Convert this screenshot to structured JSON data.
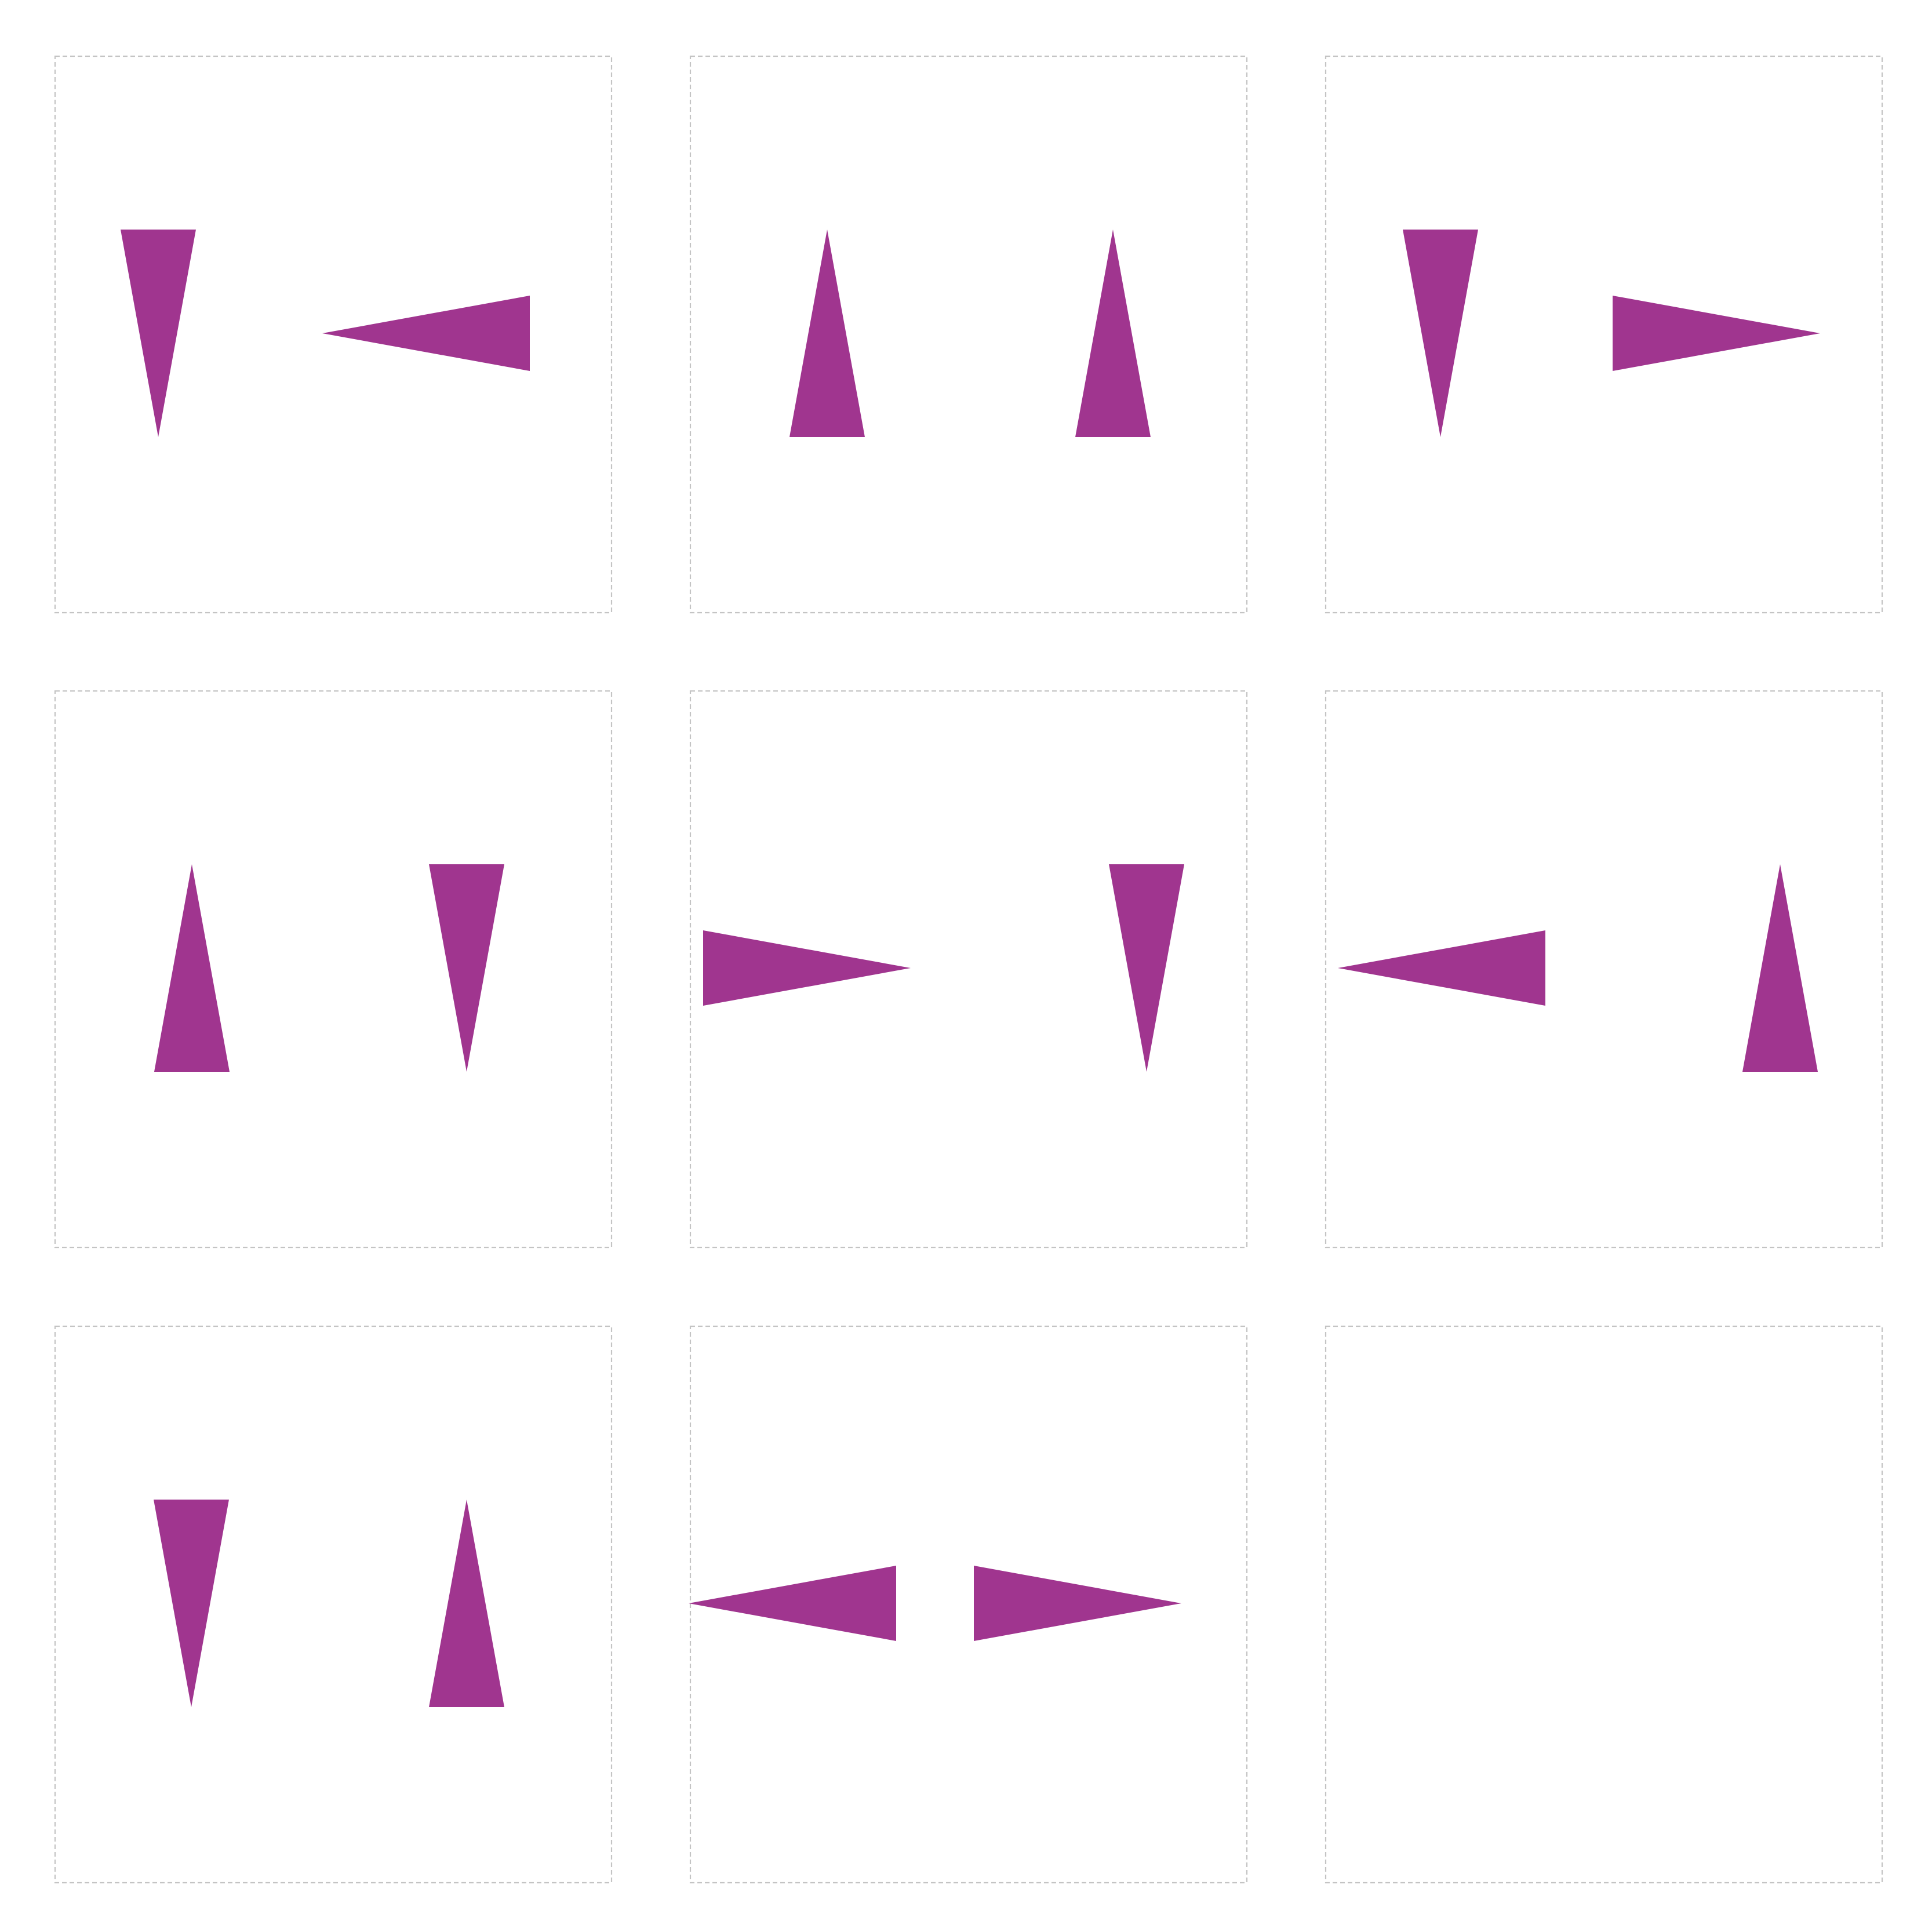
{
  "colors": {
    "background": "#ffffff",
    "panel_border": "#c4c4c4",
    "shape_fill": "#a0358f"
  },
  "grid": {
    "rows": 3,
    "columns": 3,
    "panels": [
      {
        "name": "panel-r1-c1",
        "shapes": [
          {
            "kind": "triangle",
            "direction": "down"
          },
          {
            "kind": "triangle",
            "direction": "left"
          }
        ]
      },
      {
        "name": "panel-r1-c2",
        "shapes": [
          {
            "kind": "triangle",
            "direction": "up"
          },
          {
            "kind": "triangle",
            "direction": "up"
          }
        ]
      },
      {
        "name": "panel-r1-c3",
        "shapes": [
          {
            "kind": "triangle",
            "direction": "down"
          },
          {
            "kind": "triangle",
            "direction": "right"
          }
        ]
      },
      {
        "name": "panel-r2-c1",
        "shapes": [
          {
            "kind": "triangle",
            "direction": "up"
          },
          {
            "kind": "triangle",
            "direction": "down"
          }
        ]
      },
      {
        "name": "panel-r2-c2",
        "shapes": [
          {
            "kind": "triangle",
            "direction": "right"
          },
          {
            "kind": "triangle",
            "direction": "down"
          }
        ]
      },
      {
        "name": "panel-r2-c3",
        "shapes": [
          {
            "kind": "triangle",
            "direction": "left"
          },
          {
            "kind": "triangle",
            "direction": "up"
          }
        ]
      },
      {
        "name": "panel-r3-c1",
        "shapes": [
          {
            "kind": "triangle",
            "direction": "down"
          },
          {
            "kind": "triangle",
            "direction": "up"
          }
        ]
      },
      {
        "name": "panel-r3-c2",
        "shapes": [
          {
            "kind": "triangle",
            "direction": "left"
          },
          {
            "kind": "triangle",
            "direction": "right"
          }
        ]
      },
      {
        "name": "panel-r3-c3",
        "shapes": []
      }
    ]
  }
}
